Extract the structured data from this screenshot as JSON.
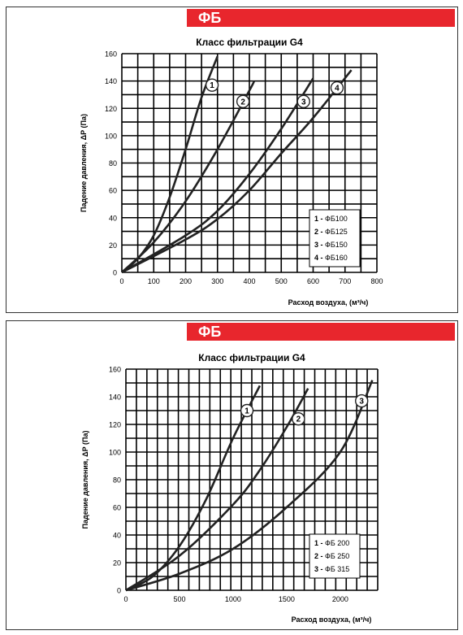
{
  "chart_data": [
    {
      "type": "line",
      "banner": "ФБ",
      "title": "Класс  фильтрации  G4",
      "ylabel": "Падение давления, ΔP (Па)",
      "xlabel": "Расход воздуха, (м³/ч)",
      "xlim": [
        0,
        800
      ],
      "ylim": [
        0,
        160
      ],
      "xticks": [
        "0",
        "100",
        "200",
        "300",
        "400",
        "500",
        "600",
        "700",
        "800"
      ],
      "yticks": [
        "0",
        "20",
        "40",
        "60",
        "80",
        "100",
        "120",
        "140",
        "160"
      ],
      "legend": [
        {
          "num": "1",
          "sep": " - ",
          "label": "ФБ100"
        },
        {
          "num": "2",
          "sep": " - ",
          "label": "ФБ125"
        },
        {
          "num": "3",
          "sep": " - ",
          "label": "ФБ150"
        },
        {
          "num": "4",
          "sep": " - ",
          "label": "ФБ160"
        }
      ],
      "series": [
        {
          "label": "1",
          "x": [
            0,
            50,
            100,
            150,
            200,
            250,
            300
          ],
          "y": [
            0,
            10,
            27,
            55,
            90,
            128,
            158
          ],
          "marker_at": [
            283,
            137
          ]
        },
        {
          "label": "2",
          "x": [
            0,
            100,
            200,
            300,
            400,
            415
          ],
          "y": [
            0,
            22,
            52,
            90,
            133,
            140
          ],
          "marker_at": [
            380,
            125
          ]
        },
        {
          "label": "3",
          "x": [
            0,
            200,
            300,
            400,
            500,
            600
          ],
          "y": [
            0,
            27,
            45,
            72,
            105,
            142
          ],
          "marker_at": [
            570,
            125
          ]
        },
        {
          "label": "4",
          "x": [
            0,
            200,
            300,
            400,
            500,
            600,
            720
          ],
          "y": [
            0,
            24,
            39,
            60,
            87,
            113,
            148
          ],
          "marker_at": [
            675,
            135
          ]
        }
      ]
    },
    {
      "type": "line",
      "banner": "ФБ",
      "title": "Класс  фильтрации  G4",
      "ylabel": "Падение давления, ΔP (Па)",
      "xlabel": "Расход воздуха, (м³/ч)",
      "xlim": [
        0,
        2350
      ],
      "ylim": [
        0,
        160
      ],
      "xticks": [
        "0",
        "500",
        "1000",
        "1500",
        "2000"
      ],
      "xtick_values": [
        0,
        500,
        1000,
        1500,
        2000
      ],
      "yticks": [
        "0",
        "20",
        "40",
        "60",
        "80",
        "100",
        "120",
        "140",
        "160"
      ],
      "legend": [
        {
          "num": "1",
          "sep": " - ",
          "label": "ФБ 200"
        },
        {
          "num": "2",
          "sep": " - ",
          "label": "ФБ 250"
        },
        {
          "num": "3",
          "sep": " - ",
          "label": "ФБ 315"
        }
      ],
      "series": [
        {
          "label": "1",
          "x": [
            0,
            250,
            500,
            750,
            1000,
            1250
          ],
          "y": [
            0,
            10,
            32,
            66,
            110,
            148
          ],
          "marker_at": [
            1130,
            130
          ]
        },
        {
          "label": "2",
          "x": [
            0,
            500,
            1000,
            1250,
            1500,
            1700
          ],
          "y": [
            0,
            25,
            62,
            87,
            118,
            146
          ],
          "marker_at": [
            1610,
            124
          ]
        },
        {
          "label": "3",
          "x": [
            0,
            500,
            1000,
            1500,
            2000,
            2300
          ],
          "y": [
            0,
            12,
            30,
            60,
            100,
            152
          ],
          "marker_at": [
            2200,
            137
          ]
        }
      ]
    }
  ]
}
